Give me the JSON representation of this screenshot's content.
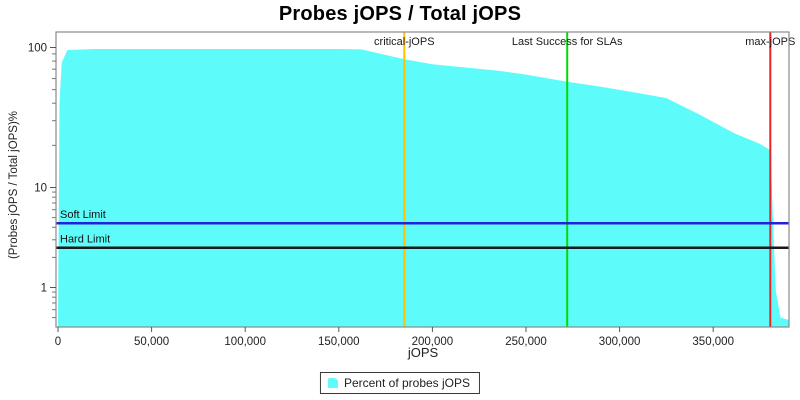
{
  "chart_data": {
    "type": "area",
    "title": "Probes jOPS / Total jOPS",
    "xlabel": "jOPS",
    "ylabel": "(Probes jOPS / Total jOPS)%",
    "x_scale": "linear",
    "y_scale": "log",
    "xlim": [
      0,
      392000
    ],
    "ylim": [
      0.4,
      130
    ],
    "grid": false,
    "border_color": "#8a8a8a",
    "x_ticks": [
      {
        "value": 0,
        "label": "0"
      },
      {
        "value": 50000,
        "label": "50,000"
      },
      {
        "value": 100000,
        "label": "100,000"
      },
      {
        "value": 150000,
        "label": "150,000"
      },
      {
        "value": 200000,
        "label": "200,000"
      },
      {
        "value": 250000,
        "label": "250,000"
      },
      {
        "value": 300000,
        "label": "300,000"
      },
      {
        "value": 350000,
        "label": "350,000"
      }
    ],
    "y_ticks": [
      {
        "value": 100,
        "label": "100"
      },
      {
        "value": 10,
        "label": "10"
      },
      {
        "value": 1,
        "label": "1"
      }
    ],
    "y_minor_ticks": [
      90,
      80,
      70,
      60,
      50,
      40,
      30,
      20,
      9,
      8,
      7,
      6,
      5,
      4,
      3,
      2,
      0.9,
      0.8,
      0.7,
      0.6,
      0.5
    ],
    "series": [
      {
        "name": "Percent of probes jOPS",
        "color": "#5efbfb",
        "points": [
          [
            0,
            0.45
          ],
          [
            800,
            40
          ],
          [
            2000,
            78
          ],
          [
            5000,
            96
          ],
          [
            20000,
            97.5
          ],
          [
            150000,
            97.5
          ],
          [
            162000,
            97
          ],
          [
            185000,
            82.5
          ],
          [
            200000,
            76
          ],
          [
            236000,
            68
          ],
          [
            250000,
            64
          ],
          [
            272000,
            57
          ],
          [
            290000,
            52.5
          ],
          [
            307000,
            48
          ],
          [
            325000,
            43.5
          ],
          [
            343000,
            33
          ],
          [
            361000,
            24.5
          ],
          [
            375000,
            20.5
          ],
          [
            380500,
            18.5
          ],
          [
            381500,
            8
          ],
          [
            382500,
            2.5
          ],
          [
            383500,
            0.9
          ],
          [
            386000,
            0.5
          ],
          [
            391000,
            0.47
          ],
          [
            391800,
            0.45
          ]
        ]
      }
    ],
    "vlines": [
      {
        "label": "critical-jOPS",
        "x": 185000,
        "color": "#ffc000"
      },
      {
        "label": "Last Success for SLAs",
        "x": 272000,
        "color": "#00dd00"
      },
      {
        "label": "max-jOPS",
        "x": 380500,
        "color": "#ee2222"
      }
    ],
    "hlines": [
      {
        "label": "Soft Limit",
        "y": 4.4,
        "color": "#2222dd"
      },
      {
        "label": "Hard Limit",
        "y": 2.5,
        "color": "#1a1a1a"
      }
    ],
    "legend": {
      "position": "bottom",
      "entries": [
        "Percent of probes jOPS"
      ]
    }
  }
}
